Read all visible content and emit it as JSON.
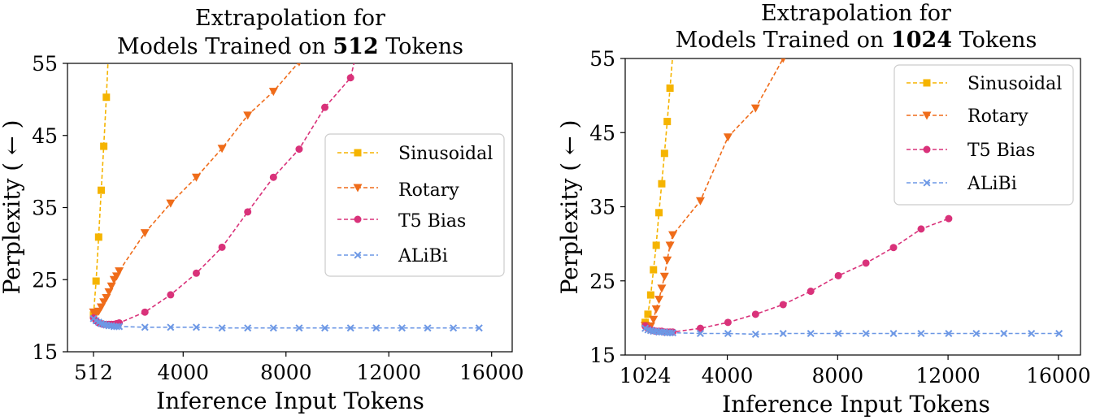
{
  "chart_data": [
    {
      "type": "line",
      "title_line1": "Extrapolation for",
      "title_prefix": "Models Trained on ",
      "title_bold": "512",
      "title_suffix": " Tokens",
      "xlabel": "Inference Input Tokens",
      "ylabel": "Perplexity ( ← )",
      "xlim": [
        -500,
        16800
      ],
      "ylim": [
        15,
        55
      ],
      "xticks": [
        512,
        4000,
        8000,
        12000,
        16000
      ],
      "xtick_labels": [
        "512",
        "4000",
        "8000",
        "12000",
        "16000"
      ],
      "yticks": [
        15,
        25,
        35,
        45,
        55
      ],
      "ytick_labels": [
        "15",
        "25",
        "35",
        "45",
        "55"
      ],
      "legend_position": "center-right",
      "series": [
        {
          "name": "Sinusoidal",
          "color": "#f5b400",
          "marker": "square",
          "x": [
            512,
            612,
            712,
            812,
            912,
            1012,
            1112
          ],
          "y": [
            20.1,
            24.8,
            30.9,
            37.4,
            43.5,
            50.3,
            58.0
          ]
        },
        {
          "name": "Rotary",
          "color": "#ef6c1a",
          "marker": "triangle-down",
          "x": [
            512,
            612,
            712,
            812,
            912,
            1012,
            1112,
            1212,
            1312,
            1412,
            1512,
            2512,
            3512,
            4512,
            5512,
            6512,
            7512,
            8512
          ],
          "y": [
            20.5,
            20.3,
            20.6,
            21.2,
            21.9,
            22.5,
            23.3,
            24.1,
            25.0,
            25.5,
            26.2,
            31.5,
            35.6,
            39.2,
            43.2,
            47.8,
            51.1,
            55.2
          ]
        },
        {
          "name": "T5 Bias",
          "color": "#d9327a",
          "marker": "circle",
          "x": [
            512,
            612,
            712,
            812,
            912,
            1012,
            1112,
            1212,
            1312,
            1412,
            1512,
            2512,
            3512,
            4512,
            5512,
            6512,
            7512,
            8512,
            9512,
            10512,
            10712
          ],
          "y": [
            19.7,
            19.3,
            19.0,
            18.9,
            18.8,
            18.8,
            18.8,
            18.8,
            18.8,
            18.9,
            19.0,
            20.5,
            22.9,
            25.9,
            29.5,
            34.4,
            39.2,
            43.1,
            48.9,
            53.0,
            56.0
          ]
        },
        {
          "name": "ALiBi",
          "color": "#6d98e5",
          "marker": "x",
          "x": [
            512,
            612,
            712,
            812,
            912,
            1012,
            1112,
            1212,
            1312,
            1412,
            1512,
            2512,
            3512,
            4512,
            5512,
            6512,
            7512,
            8512,
            9512,
            10512,
            11512,
            12512,
            13512,
            14512,
            15512
          ],
          "y": [
            19.6,
            19.3,
            19.1,
            18.9,
            18.8,
            18.7,
            18.6,
            18.6,
            18.5,
            18.5,
            18.5,
            18.4,
            18.4,
            18.4,
            18.3,
            18.3,
            18.3,
            18.3,
            18.3,
            18.3,
            18.3,
            18.3,
            18.3,
            18.3,
            18.3
          ]
        }
      ]
    },
    {
      "type": "line",
      "title_line1": "Extrapolation for",
      "title_prefix": "Models Trained on ",
      "title_bold": "1024",
      "title_suffix": " Tokens",
      "xlabel": "Inference Input Tokens",
      "ylabel": "Perplexity ( ← )",
      "xlim": [
        300,
        16800
      ],
      "ylim": [
        15,
        55
      ],
      "xticks": [
        1024,
        4000,
        8000,
        12000,
        16000
      ],
      "xtick_labels": [
        "1024",
        "4000",
        "8000",
        "12000",
        "16000"
      ],
      "yticks": [
        15,
        25,
        35,
        45,
        55
      ],
      "ytick_labels": [
        "15",
        "25",
        "35",
        "45",
        "55"
      ],
      "legend_position": "top-right",
      "series": [
        {
          "name": "Sinusoidal",
          "color": "#f5b400",
          "marker": "square",
          "x": [
            1024,
            1124,
            1224,
            1324,
            1424,
            1524,
            1624,
            1724,
            1824,
            1924,
            2024,
            2124
          ],
          "y": [
            19.4,
            20.5,
            23.1,
            26.5,
            29.8,
            34.2,
            38.1,
            42.2,
            46.5,
            51.0,
            55.5,
            60.0
          ]
        },
        {
          "name": "Rotary",
          "color": "#ef6c1a",
          "marker": "triangle-down",
          "x": [
            1024,
            1124,
            1224,
            1324,
            1424,
            1524,
            1624,
            1724,
            1824,
            1924,
            2024,
            3024,
            4024,
            5024,
            6024
          ],
          "y": [
            19.0,
            18.6,
            18.9,
            19.8,
            21.2,
            22.5,
            24.0,
            25.6,
            27.8,
            29.8,
            31.2,
            35.8,
            44.4,
            48.3,
            55.0
          ]
        },
        {
          "name": "T5 Bias",
          "color": "#d9327a",
          "marker": "circle",
          "x": [
            1024,
            1124,
            1224,
            1324,
            1424,
            1524,
            1624,
            1724,
            1824,
            1924,
            2024,
            3024,
            4024,
            5024,
            6024,
            7024,
            8024,
            9024,
            10024,
            11024,
            12024
          ],
          "y": [
            18.9,
            18.6,
            18.4,
            18.3,
            18.2,
            18.2,
            18.2,
            18.1,
            18.1,
            18.1,
            18.1,
            18.6,
            19.4,
            20.5,
            21.8,
            23.6,
            25.7,
            27.4,
            29.5,
            32.0,
            33.4
          ]
        },
        {
          "name": "ALiBi",
          "color": "#6d98e5",
          "marker": "x",
          "x": [
            1024,
            1124,
            1224,
            1324,
            1424,
            1524,
            1624,
            1724,
            1824,
            1924,
            2024,
            3024,
            4024,
            5024,
            6024,
            7024,
            8024,
            9024,
            10024,
            11024,
            12024,
            13024,
            14024,
            15024,
            16024
          ],
          "y": [
            18.6,
            18.4,
            18.3,
            18.2,
            18.2,
            18.1,
            18.1,
            18.1,
            18.0,
            18.0,
            18.0,
            17.9,
            17.9,
            17.8,
            17.9,
            17.9,
            17.9,
            17.9,
            17.9,
            17.9,
            17.9,
            17.9,
            17.9,
            17.9,
            17.9
          ]
        }
      ]
    }
  ]
}
